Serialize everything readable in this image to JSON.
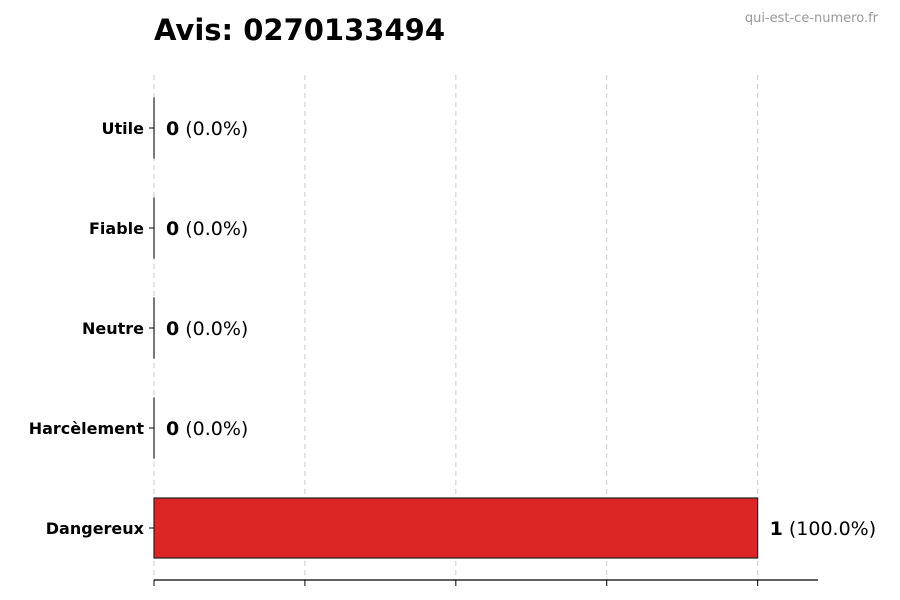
{
  "watermark": "qui-est-ce-numero.fr",
  "chart_data": {
    "type": "bar",
    "orientation": "horizontal",
    "title": "Avis: 0270133494",
    "categories": [
      "Utile",
      "Fiable",
      "Neutre",
      "Harcèlement",
      "Dangereux"
    ],
    "values": [
      0,
      0,
      0,
      0,
      1
    ],
    "value_labels": [
      "0",
      "0",
      "0",
      "0",
      "1"
    ],
    "percent_labels": [
      "(0.0%)",
      "(0.0%)",
      "(0.0%)",
      "(0.0%)",
      "(100.0%)"
    ],
    "bar_color": "#dc2626",
    "xlim": [
      0,
      1.1
    ],
    "xticks": [
      0,
      0.25,
      0.5,
      0.75,
      1
    ],
    "xtick_labels_shown": false,
    "grid": "x-dashed",
    "xlabel": "",
    "ylabel": ""
  }
}
